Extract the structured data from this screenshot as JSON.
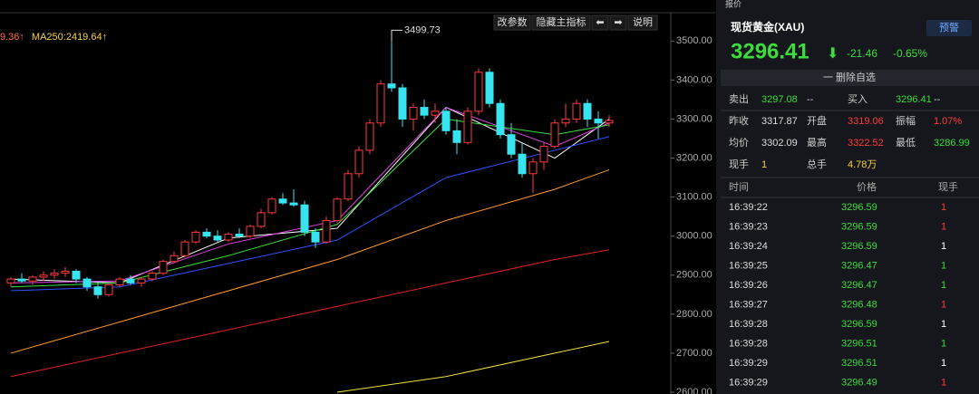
{
  "toolbar": {
    "buttons": [
      "改参数",
      "隐藏主指标",
      "⬅",
      "➡",
      "说明"
    ],
    "legend": [
      {
        "text": "9.36↑",
        "color": "#ff6a3d"
      },
      {
        "text": "MA250:2419.64↑",
        "color": "#f5d04a"
      }
    ]
  },
  "chart_data": {
    "type": "candlestick",
    "annotation": "3499.73",
    "annotation_index": 35,
    "ylim": [
      2600,
      3510
    ],
    "yticks": [
      {
        "value": 3500,
        "label": "3500.00"
      },
      {
        "value": 3400,
        "label": "3400.00"
      },
      {
        "value": 3300,
        "label": "3300.00"
      },
      {
        "value": 3200,
        "label": "3200.00"
      },
      {
        "value": 3100,
        "label": "3100.00"
      },
      {
        "value": 3000,
        "label": "3000.00"
      },
      {
        "value": 2900,
        "label": "2900.00"
      },
      {
        "value": 2800,
        "label": "2800.00"
      },
      {
        "value": 2700,
        "label": "2700.00"
      },
      {
        "value": 2600,
        "label": "2600.00"
      }
    ],
    "up_color": "#ff3b3b",
    "down_color": "#37e4f0",
    "candles": [
      [
        2880,
        2895,
        2870,
        2890
      ],
      [
        2890,
        2905,
        2880,
        2885
      ],
      [
        2885,
        2900,
        2875,
        2895
      ],
      [
        2895,
        2910,
        2885,
        2900
      ],
      [
        2900,
        2915,
        2890,
        2905
      ],
      [
        2905,
        2920,
        2895,
        2910
      ],
      [
        2910,
        2915,
        2880,
        2890
      ],
      [
        2890,
        2895,
        2860,
        2870
      ],
      [
        2870,
        2885,
        2840,
        2850
      ],
      [
        2850,
        2880,
        2845,
        2875
      ],
      [
        2875,
        2895,
        2870,
        2890
      ],
      [
        2890,
        2900,
        2875,
        2880
      ],
      [
        2880,
        2895,
        2870,
        2890
      ],
      [
        2890,
        2910,
        2885,
        2905
      ],
      [
        2905,
        2940,
        2900,
        2935
      ],
      [
        2935,
        2960,
        2930,
        2950
      ],
      [
        2950,
        2990,
        2945,
        2985
      ],
      [
        2985,
        3015,
        2980,
        3010
      ],
      [
        3010,
        3020,
        2995,
        3000
      ],
      [
        3000,
        3015,
        2985,
        2990
      ],
      [
        2990,
        3010,
        2985,
        3005
      ],
      [
        3005,
        3020,
        2995,
        3000
      ],
      [
        3000,
        3030,
        2995,
        3025
      ],
      [
        3025,
        3070,
        3020,
        3060
      ],
      [
        3060,
        3100,
        3055,
        3095
      ],
      [
        3095,
        3110,
        3080,
        3085
      ],
      [
        3085,
        3120,
        3075,
        3080
      ],
      [
        3080,
        3090,
        3000,
        3010
      ],
      [
        3010,
        3020,
        2970,
        2985
      ],
      [
        2985,
        3050,
        2980,
        3040
      ],
      [
        3040,
        3100,
        3035,
        3095
      ],
      [
        3095,
        3170,
        3090,
        3160
      ],
      [
        3160,
        3230,
        3150,
        3220
      ],
      [
        3220,
        3300,
        3210,
        3290
      ],
      [
        3290,
        3400,
        3280,
        3390
      ],
      [
        3390,
        3499.73,
        3370,
        3380
      ],
      [
        3380,
        3390,
        3280,
        3300
      ],
      [
        3300,
        3340,
        3270,
        3330
      ],
      [
        3330,
        3350,
        3300,
        3310
      ],
      [
        3310,
        3340,
        3290,
        3320
      ],
      [
        3320,
        3330,
        3260,
        3270
      ],
      [
        3270,
        3300,
        3210,
        3240
      ],
      [
        3240,
        3330,
        3235,
        3320
      ],
      [
        3320,
        3430,
        3310,
        3420
      ],
      [
        3420,
        3430,
        3330,
        3340
      ],
      [
        3340,
        3350,
        3250,
        3260
      ],
      [
        3260,
        3290,
        3200,
        3210
      ],
      [
        3210,
        3240,
        3150,
        3160
      ],
      [
        3160,
        3200,
        3110,
        3190
      ],
      [
        3190,
        3240,
        3170,
        3230
      ],
      [
        3230,
        3300,
        3225,
        3290
      ],
      [
        3290,
        3340,
        3280,
        3300
      ],
      [
        3300,
        3350,
        3290,
        3340
      ],
      [
        3340,
        3350,
        3280,
        3300
      ],
      [
        3300,
        3320,
        3250,
        3290
      ],
      [
        3290,
        3310,
        3280,
        3296.41
      ]
    ],
    "ma_x": [
      0,
      10,
      20,
      30,
      40,
      50,
      55
    ],
    "series": [
      {
        "color": "#ffffff",
        "values": [
          2890,
          2880,
          2995,
          3020,
          3330,
          3200,
          3300
        ]
      },
      {
        "color": "#e040e0",
        "values": [
          2880,
          2885,
          2980,
          3040,
          3330,
          3230,
          3290
        ]
      },
      {
        "color": "#3ddc3d",
        "values": [
          2870,
          2880,
          2950,
          3030,
          3300,
          3260,
          3285
        ]
      },
      {
        "color": "#3050ff",
        "values": [
          2860,
          2870,
          2930,
          2990,
          3150,
          3220,
          3255
        ]
      },
      {
        "color": "#ff9a2e",
        "values": [
          2700,
          2780,
          2860,
          2940,
          3040,
          3120,
          3170
        ]
      },
      {
        "color": "#e02020",
        "values": [
          2640,
          2700,
          2760,
          2820,
          2880,
          2940,
          2965
        ]
      },
      {
        "color": "#f0e040",
        "values": [
          null,
          null,
          null,
          2600,
          2640,
          2700,
          2730
        ]
      }
    ]
  },
  "panel": {
    "tab": "报价",
    "title": "现货黄金(XAU)",
    "alert": "预警",
    "price": "3296.41",
    "change": "-21.46",
    "pct": "-0.65%",
    "remove": "一 删除自选",
    "quote": [
      [
        [
          "卖出",
          "#ccc"
        ],
        [
          "3297.08",
          "#3ddc3d"
        ],
        [
          "--",
          "#ccc"
        ],
        [
          "买入",
          "#ccc"
        ],
        [
          "3296.41",
          "#3ddc3d"
        ],
        [
          "--",
          "#ccc"
        ]
      ],
      [
        [
          "昨收",
          "#ccc"
        ],
        [
          "3317.87",
          "#ddd"
        ],
        [
          "开盘",
          "#ccc"
        ],
        [
          "3319.06",
          "#ff3b3b"
        ],
        [
          "振幅",
          "#ccc"
        ],
        [
          "1.07%",
          "#ff3b3b"
        ]
      ],
      [
        [
          "均价",
          "#ccc"
        ],
        [
          "3302.09",
          "#ddd"
        ],
        [
          "最高",
          "#ccc"
        ],
        [
          "3322.52",
          "#ff3b3b"
        ],
        [
          "最低",
          "#ccc"
        ],
        [
          "3286.99",
          "#3ddc3d"
        ]
      ],
      [
        [
          "现手",
          "#ccc"
        ],
        [
          "1",
          "#f5d04a"
        ],
        [
          "总手",
          "#ccc"
        ],
        [
          "4.78万",
          "#f5d04a"
        ]
      ]
    ],
    "trade_header": [
      "时间",
      "价格",
      "现手"
    ],
    "trades": [
      [
        "16:39:22",
        "3296.59",
        "1",
        "#ff3b3b"
      ],
      [
        "16:39:23",
        "3296.59",
        "1",
        "#ff3b3b"
      ],
      [
        "16:39:24",
        "3296.59",
        "1",
        "#ffffff"
      ],
      [
        "16:39:25",
        "3296.47",
        "1",
        "#3ddc3d"
      ],
      [
        "16:39:26",
        "3296.47",
        "1",
        "#3ddc3d"
      ],
      [
        "16:39:27",
        "3296.48",
        "1",
        "#ff3b3b"
      ],
      [
        "16:39:28",
        "3296.59",
        "1",
        "#ffffff"
      ],
      [
        "16:39:28",
        "3296.51",
        "1",
        "#3ddc3d"
      ],
      [
        "16:39:29",
        "3296.51",
        "1",
        "#ffffff"
      ],
      [
        "16:39:29",
        "3296.49",
        "1",
        "#ff3b3b"
      ]
    ]
  }
}
